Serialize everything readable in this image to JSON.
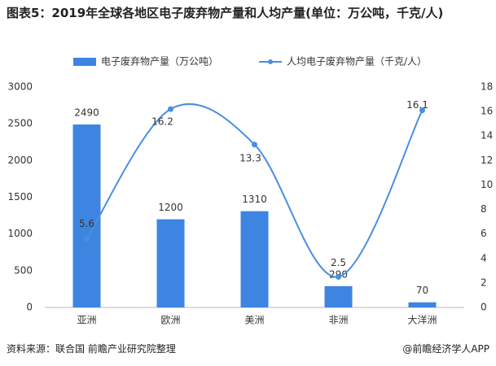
{
  "chart_data": {
    "type": "bar",
    "title": "图表5：2019年全球各地区电子废弃物产量和人均产量(单位：万公吨，千克/人)",
    "categories": [
      "亚洲",
      "欧洲",
      "美洲",
      "非洲",
      "大洋洲"
    ],
    "series": [
      {
        "name": "电子废弃物产量（万公吨）",
        "type": "bar",
        "color": "#3d85e0",
        "values": [
          2490,
          1200,
          1310,
          290,
          70
        ]
      },
      {
        "name": "人均电子废弃物产量（千克/人）",
        "type": "line",
        "axis": "y2",
        "color": "#4a8fe0",
        "values": [
          5.6,
          16.2,
          13.3,
          2.5,
          16.1
        ]
      }
    ],
    "ylim": [
      0,
      3000
    ],
    "yticks": [
      0,
      500,
      1000,
      1500,
      2000,
      2500,
      3000
    ],
    "y2lim": [
      0,
      18
    ],
    "y2ticks": [
      0,
      2,
      4,
      6,
      8,
      10,
      12,
      14,
      16,
      18
    ],
    "source": "资料来源：联合国 前瞻产业研究院整理",
    "credit": "@前瞻经济学人APP"
  }
}
